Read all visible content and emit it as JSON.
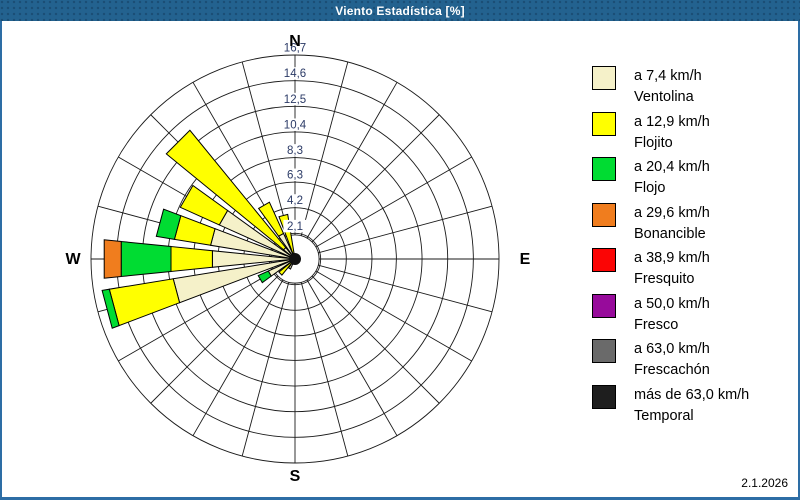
{
  "window": {
    "title": "Viento Estadística [%]",
    "date": "2.1.2026"
  },
  "chart_data": {
    "type": "wind-rose",
    "title": "Viento Estadística [%]",
    "units": "%",
    "max": 16.7,
    "rings": [
      2.1,
      4.2,
      6.3,
      8.3,
      10.4,
      12.5,
      14.6,
      16.7
    ],
    "ring_labels": [
      "2,1",
      "4,2",
      "6,3",
      "8,3",
      "10,4",
      "12,5",
      "14,6",
      "16,7"
    ],
    "sector_width_deg": 15,
    "compass": {
      "north": "N",
      "east": "E",
      "south": "S",
      "west": "W"
    },
    "grid": {
      "spoke_step_deg": 15,
      "inner_hole_radius_pct": 11.8,
      "line_color": "#1a1a1a"
    },
    "categories": [
      {
        "label_speed": "a 7,4 km/h",
        "label_name": "Ventolina",
        "color": "#f5f1c9"
      },
      {
        "label_speed": "a 12,9 km/h",
        "label_name": "Flojito",
        "color": "#ffff00"
      },
      {
        "label_speed": "a 20,4 km/h",
        "label_name": "Flojo",
        "color": "#00dc32"
      },
      {
        "label_speed": "a 29,6 km/h",
        "label_name": "Bonancible",
        "color": "#f07d1e"
      },
      {
        "label_speed": "a 38,9 km/h",
        "label_name": "Fresquito",
        "color": "#fb0505"
      },
      {
        "label_speed": "a 50,0 km/h",
        "label_name": "Fresco",
        "color": "#970b9b"
      },
      {
        "label_speed": "a 63,0 km/h",
        "label_name": "Frescachón",
        "color": "#6a6a6a"
      },
      {
        "label_speed": "más de 63,0 km/h",
        "label_name": "Temporal",
        "color": "#1e1e1e"
      }
    ],
    "sectors": [
      {
        "dir_deg": 210,
        "values": [
          0.9,
          0,
          0,
          0,
          0,
          0,
          0,
          0
        ]
      },
      {
        "dir_deg": 225,
        "values": [
          0.4,
          1.3,
          0,
          0,
          0,
          0,
          0,
          0
        ]
      },
      {
        "dir_deg": 240,
        "values": [
          2.4,
          0,
          0.9,
          0,
          0,
          0,
          0,
          0
        ]
      },
      {
        "dir_deg": 255,
        "values": [
          10.1,
          5.3,
          0.6,
          0,
          0,
          0,
          0,
          0
        ]
      },
      {
        "dir_deg": 270,
        "values": [
          6.8,
          3.4,
          4.1,
          1.4,
          0,
          0,
          0,
          0
        ]
      },
      {
        "dir_deg": 285,
        "values": [
          7.0,
          3.0,
          1.5,
          0,
          0,
          0,
          0,
          0
        ]
      },
      {
        "dir_deg": 300,
        "values": [
          6.8,
          3.5,
          0,
          0,
          0,
          0,
          0,
          0
        ]
      },
      {
        "dir_deg": 315,
        "values": [
          1.2,
          12.4,
          0,
          0,
          0,
          0,
          0,
          0
        ]
      },
      {
        "dir_deg": 330,
        "values": [
          2.3,
          2.8,
          0,
          0,
          0,
          0,
          0,
          0
        ]
      },
      {
        "dir_deg": 345,
        "values": [
          0.5,
          3.2,
          0,
          0,
          0,
          0,
          0,
          0
        ]
      }
    ],
    "legend_position": "right"
  }
}
